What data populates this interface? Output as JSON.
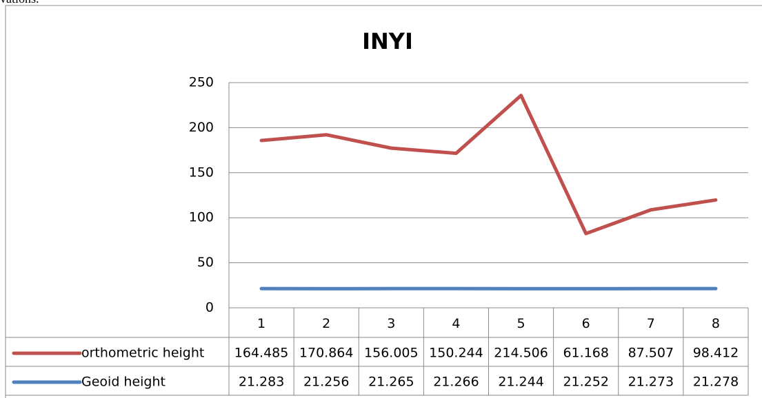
{
  "caption_fragment": "vations.",
  "chart_data": {
    "type": "line",
    "stacked": true,
    "title": "INYI",
    "categories": [
      "1",
      "2",
      "3",
      "4",
      "5",
      "6",
      "7",
      "8"
    ],
    "series": [
      {
        "name": "Geoid height",
        "color": "#4f81bd",
        "values": [
          21.283,
          21.256,
          21.265,
          21.266,
          21.244,
          21.252,
          21.273,
          21.278
        ]
      },
      {
        "name": "orthometric height",
        "color": "#c0504d",
        "values": [
          164.485,
          170.864,
          156.005,
          150.244,
          214.506,
          61.168,
          87.507,
          98.412
        ]
      }
    ],
    "table_order": [
      1,
      0
    ],
    "ylim": [
      0,
      250
    ],
    "yticks": [
      0,
      50,
      100,
      150,
      200,
      250
    ],
    "grid": true
  }
}
